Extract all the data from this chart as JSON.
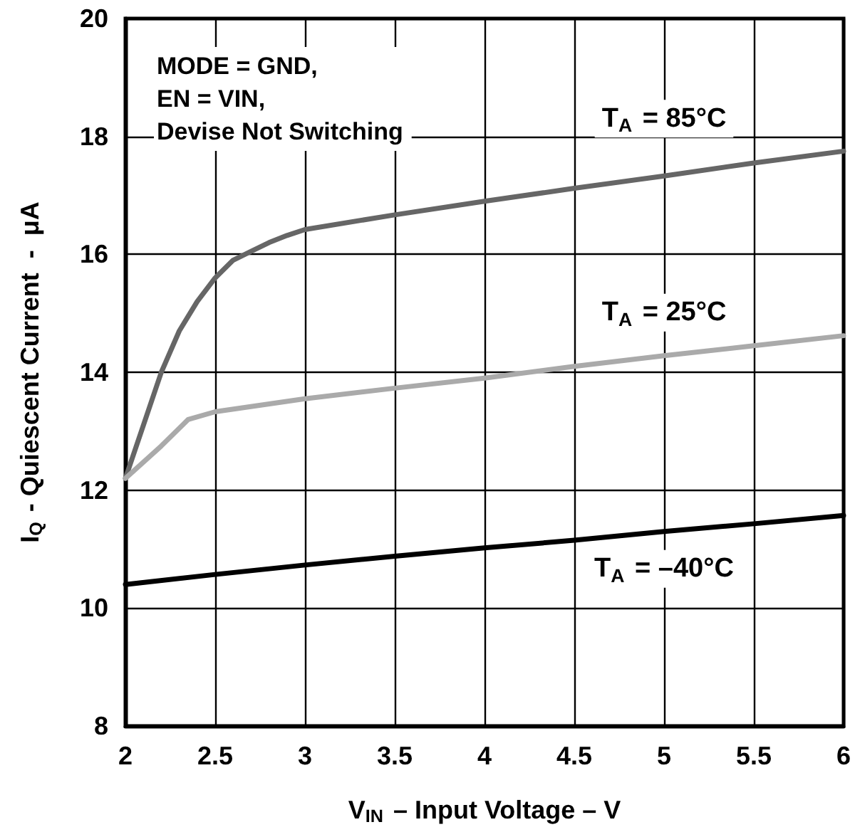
{
  "chart_data": {
    "type": "line",
    "xlabel": "V$_{IN}$ – Input Voltage – V",
    "ylabel": "I$_{Q}$ - Quiescent Current  -  μA",
    "annotations": [
      "MODE = GND,\nEN = VIN,\nDevise Not Switching"
    ],
    "xlim": [
      2,
      6
    ],
    "xticks": [
      2,
      2.5,
      3,
      3.5,
      4,
      4.5,
      5,
      5.5,
      6
    ],
    "ylim": [
      8,
      20
    ],
    "yticks": [
      8,
      10,
      12,
      14,
      16,
      18,
      20
    ],
    "grid": true,
    "legend": false,
    "marker": "none",
    "line_style": "solid",
    "series": [
      {
        "name": "T$_{A}$ = 85°C",
        "color": "#666666",
        "x": [
          2,
          2.1,
          2.2,
          2.3,
          2.4,
          2.5,
          2.6,
          2.7,
          2.8,
          2.9,
          3,
          3.5,
          4,
          4.5,
          5,
          5.5,
          6
        ],
        "values": [
          12.2,
          13.1,
          14,
          14.7,
          15.2,
          15.6,
          15.9,
          16.05,
          16.2,
          16.32,
          16.42,
          16.67,
          16.9,
          17.12,
          17.33,
          17.55,
          17.75
        ]
      },
      {
        "name": "T$_{A}$ = 25°C",
        "color": "#aaaaaa",
        "x": [
          2,
          2.2,
          2.35,
          2.5,
          3,
          3.5,
          4,
          4.5,
          5,
          5.5,
          6
        ],
        "values": [
          12.2,
          12.75,
          13.2,
          13.33,
          13.55,
          13.73,
          13.9,
          14.1,
          14.28,
          14.45,
          14.62
        ]
      },
      {
        "name": "T$_{A}$ = –40°C",
        "color": "#000000",
        "x": [
          2,
          2.5,
          3,
          3.5,
          4,
          4.5,
          5,
          5.5,
          6
        ],
        "values": [
          10.4,
          10.57,
          10.73,
          10.88,
          11.02,
          11.15,
          11.3,
          11.43,
          11.57
        ]
      }
    ]
  }
}
